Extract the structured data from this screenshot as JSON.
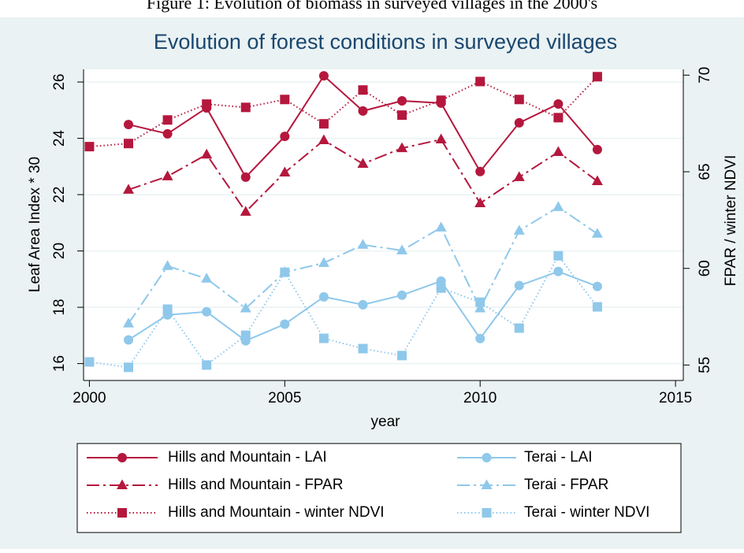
{
  "caption": "Figure 1: Evolution of biomass in surveyed villages in the 2000's",
  "chart_data": {
    "type": "line",
    "title": "Evolution of forest conditions in surveyed villages",
    "x_label": "year",
    "y_label": "Leaf Area Index * 30",
    "y2_label": "FPAR / winter NDVI",
    "x": [
      2000,
      2001,
      2002,
      2003,
      2004,
      2005,
      2006,
      2007,
      2008,
      2009,
      2010,
      2011,
      2012,
      2013
    ],
    "xlim": [
      1999.85,
      2015.2
    ],
    "xticks": [
      2000,
      2005,
      2010,
      2015
    ],
    "ylim": [
      15.4,
      26.45
    ],
    "yticks": [
      16,
      18,
      20,
      22,
      24,
      26
    ],
    "y2lim": [
      54.2,
      70.3
    ],
    "y2ticks": [
      55,
      60,
      65,
      70
    ],
    "grid": true,
    "series": [
      {
        "name": "Hills and Mountain - LAI",
        "color": "#b5173d",
        "style": "solid",
        "marker": "circle",
        "axis": "y",
        "values": [
          null,
          24.49,
          24.16,
          25.08,
          22.62,
          24.07,
          26.22,
          24.97,
          25.33,
          25.25,
          22.82,
          24.55,
          25.22,
          23.6
        ]
      },
      {
        "name": "Terai - LAI",
        "color": "#8fc8ea",
        "style": "solid",
        "marker": "circle",
        "axis": "y",
        "values": [
          null,
          16.84,
          17.73,
          17.84,
          16.81,
          17.4,
          18.37,
          18.09,
          18.43,
          18.93,
          16.89,
          18.77,
          19.27,
          18.74
        ]
      },
      {
        "name": "Hills and Mountain - FPAR",
        "color": "#b5173d",
        "style": "dashdot",
        "marker": "triangle",
        "axis": "y2",
        "values": [
          null,
          64.07,
          64.76,
          65.89,
          62.93,
          64.96,
          66.63,
          65.41,
          66.22,
          66.67,
          63.37,
          64.72,
          66.02,
          64.51
        ]
      },
      {
        "name": "Terai - FPAR",
        "color": "#8fc8ea",
        "style": "dashdot",
        "marker": "triangle",
        "axis": "y2",
        "values": [
          null,
          57.15,
          60.12,
          59.47,
          57.93,
          59.8,
          60.28,
          61.22,
          60.93,
          62.11,
          57.93,
          61.95,
          63.17,
          61.79
        ]
      },
      {
        "name": "Hills and Mountain - winter NDVI",
        "color": "#b5173d",
        "style": "dotted",
        "marker": "square",
        "axis": "y2",
        "values": [
          66.3,
          66.46,
          67.68,
          68.5,
          68.33,
          68.74,
          67.48,
          69.23,
          67.93,
          68.7,
          69.67,
          68.74,
          67.8,
          69.92
        ]
      },
      {
        "name": "Terai - winter NDVI",
        "color": "#8fc8ea",
        "style": "dotted",
        "marker": "square",
        "axis": "y2",
        "values": [
          55.16,
          54.88,
          57.89,
          55.0,
          56.54,
          59.8,
          56.38,
          55.85,
          55.49,
          58.98,
          58.25,
          56.91,
          60.65,
          58.01
        ]
      }
    ]
  }
}
